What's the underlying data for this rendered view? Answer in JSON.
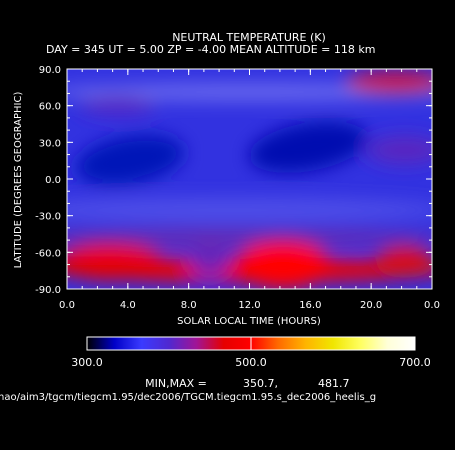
{
  "chart_data": {
    "type": "heatmap",
    "title": "NEUTRAL TEMPERATURE (K)",
    "subtitle": "DAY = 345   UT =  5.00   ZP =   -4.00   MEAN ALTITUDE = 118 km",
    "xlabel": "SOLAR LOCAL TIME (HOURS)",
    "ylabel": "LATITUDE (DEGREES GEOGRAPHIC)",
    "xlim": [
      0,
      24
    ],
    "ylim": [
      -90,
      90
    ],
    "x_ticks": [
      "0.0",
      "4.0",
      "8.0",
      "12.0",
      "16.0",
      "20.0",
      "0.0"
    ],
    "y_ticks": [
      "90.0",
      "60.0",
      "30.0",
      "0.0",
      "-30.0",
      "-60.0",
      "-90.0"
    ],
    "grid": false,
    "colorbar": {
      "min": 300.0,
      "max": 700.0,
      "tick_labels": [
        "300.0",
        "500.0",
        "700.0"
      ],
      "colors": [
        "#000000",
        "#0000c8",
        "#3a3aff",
        "#5028d0",
        "#a01496",
        "#e60000",
        "#ff0000",
        "#ff6a00",
        "#ffb400",
        "#f0e600",
        "#ffff60",
        "#ffffd8",
        "#ffffff"
      ]
    },
    "min_max_label": "MIN,MAX =",
    "min_value": "350.7,",
    "max_value": "481.7",
    "features": [
      {
        "x": 4.0,
        "y": 12,
        "value": 352
      },
      {
        "x": 14.5,
        "y": 25,
        "value": 353
      },
      {
        "x": 13.5,
        "y": -72,
        "value": 480
      },
      {
        "x": 3.0,
        "y": -77,
        "value": 465
      },
      {
        "x": 21.5,
        "y": 80,
        "value": 440
      }
    ]
  },
  "footer": {
    "path": "hao/aim3/tgcm/tiegcm1.95/dec2006/TGCM.tiegcm1.95.s_dec2006_heelis_g"
  }
}
